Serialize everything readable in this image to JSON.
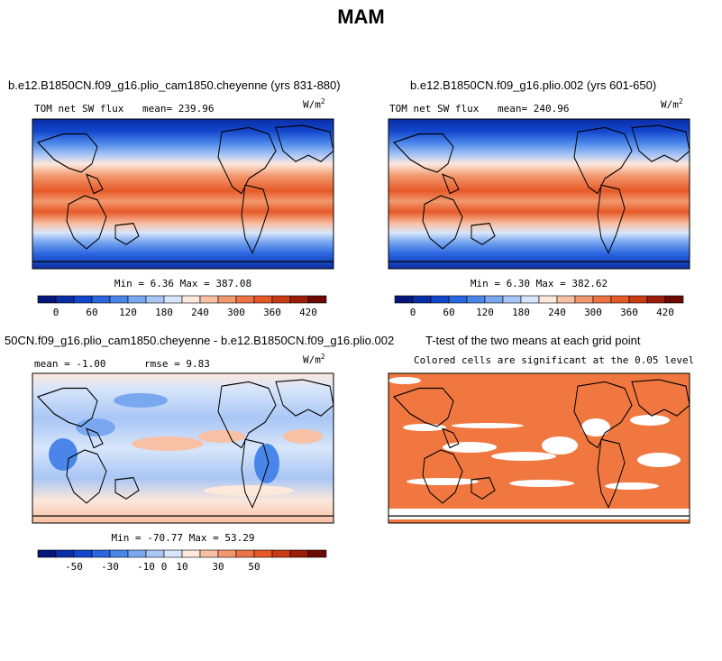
{
  "title": "MAM",
  "panels": [
    {
      "id": "top-left",
      "header": "b.e12.B1850CN.f09_g16.plio_cam1850.cheyenne (yrs 831-880)",
      "left_label": "TOM net SW flux",
      "stat_label": "mean= 239.96",
      "units_base": "W/m",
      "units_exp": "2",
      "minmax": "Min =   6.36 Max = 387.08"
    },
    {
      "id": "top-right",
      "header": "b.e12.B1850CN.f09_g16.plio.002 (yrs 601-650)",
      "left_label": "TOM net SW flux",
      "stat_label": "mean= 240.96",
      "units_base": "W/m",
      "units_exp": "2",
      "minmax": "Min =   6.30 Max = 382.62"
    },
    {
      "id": "bottom-left",
      "header": "50CN.f09_g16.plio_cam1850.cheyenne - b.e12.B1850CN.f09_g16.plio.002",
      "mean_label": "mean =  -1.00",
      "rmse_label": "rmse =   9.83",
      "units_base": "W/m",
      "units_exp": "2",
      "minmax": "Min = -70.77 Max =  53.29"
    },
    {
      "id": "bottom-right",
      "header": "T-test of the two means at each grid point",
      "subtitle": "Colored cells are significant at the 0.05 level"
    }
  ],
  "chart_data": [
    {
      "type": "heatmap",
      "title": "b.e12.B1850CN.f09_g16.plio_cam1850.cheyenne (yrs 831-880)",
      "variable": "TOM net SW flux",
      "units": "W/m2",
      "mean": 239.96,
      "min": 6.36,
      "max": 387.08,
      "colorbar_ticks": [
        "0",
        "60",
        "120",
        "180",
        "240",
        "300",
        "360",
        "420"
      ],
      "colorbar_colors": [
        "#07167a",
        "#0b2ea6",
        "#1246cc",
        "#2a66e0",
        "#4a86ea",
        "#7aa8f0",
        "#a9c6f5",
        "#d8e6fa",
        "#fde8dc",
        "#f8c0a4",
        "#f2986e",
        "#ec7444",
        "#e65a28",
        "#c83c14",
        "#9c1e0a",
        "#6e0a04"
      ]
    },
    {
      "type": "heatmap",
      "title": "b.e12.B1850CN.f09_g16.plio.002 (yrs 601-650)",
      "variable": "TOM net SW flux",
      "units": "W/m2",
      "mean": 240.96,
      "min": 6.3,
      "max": 382.62,
      "colorbar_ticks": [
        "0",
        "60",
        "120",
        "180",
        "240",
        "300",
        "360",
        "420"
      ],
      "colorbar_colors": [
        "#07167a",
        "#0b2ea6",
        "#1246cc",
        "#2a66e0",
        "#4a86ea",
        "#7aa8f0",
        "#a9c6f5",
        "#d8e6fa",
        "#fde8dc",
        "#f8c0a4",
        "#f2986e",
        "#ec7444",
        "#e65a28",
        "#c83c14",
        "#9c1e0a",
        "#6e0a04"
      ]
    },
    {
      "type": "heatmap",
      "title": "50CN.f09_g16.plio_cam1850.cheyenne - b.e12.B1850CN.f09_g16.plio.002",
      "units": "W/m2",
      "mean": -1.0,
      "rmse": 9.83,
      "min": -70.77,
      "max": 53.29,
      "colorbar_ticks": [
        "-50",
        "-30",
        "-10",
        "0",
        "10",
        "30",
        "50"
      ],
      "colorbar_colors": [
        "#07167a",
        "#0b2ea6",
        "#1246cc",
        "#2a66e0",
        "#4a86ea",
        "#7aa8f0",
        "#a9c6f5",
        "#d8e6fa",
        "#fde8dc",
        "#f8c0a4",
        "#f2986e",
        "#ec7444",
        "#e65a28",
        "#c83c14",
        "#9c1e0a",
        "#6e0a04"
      ]
    },
    {
      "type": "heatmap",
      "title": "T-test of the two means at each grid point",
      "subtitle": "Colored cells are significant at the 0.05 level",
      "significant_color": "#f07840",
      "nonsignificant_color": "#ffffff"
    }
  ]
}
